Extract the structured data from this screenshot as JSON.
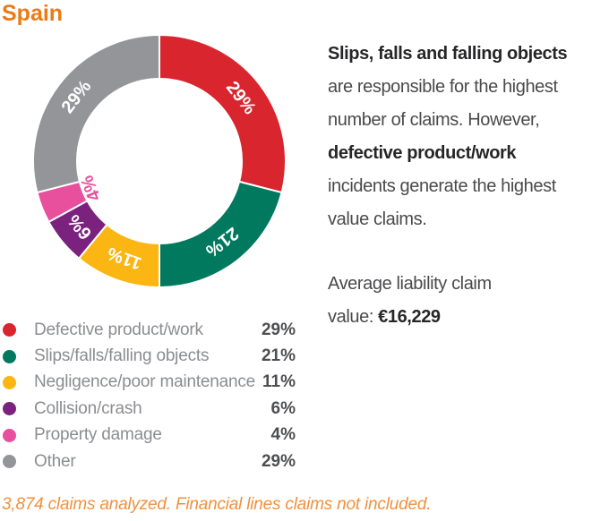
{
  "page": {
    "title": "Spain"
  },
  "colors": {
    "accent_orange": "#ea7b16",
    "footnote_orange": "#f0913e",
    "text_regular": "#4a4a4c",
    "text_bold": "#262628",
    "legend_label_gray": "#8b8d90",
    "legend_value_gray": "#4d4e50"
  },
  "chart_data": {
    "type": "pie",
    "subtype": "donut",
    "title": "Spain",
    "categories": [
      "Defective product/work",
      "Slips/falls/falling objects",
      "Negligence/poor maintenance",
      "Collision/crash",
      "Property damage",
      "Other"
    ],
    "values": [
      29,
      21,
      11,
      6,
      4,
      29
    ],
    "value_labels": [
      "29%",
      "21%",
      "11%",
      "6%",
      "4%",
      "29%"
    ],
    "colors": [
      "#d9252e",
      "#00795e",
      "#fcb613",
      "#7b217e",
      "#e8509d",
      "#939598"
    ],
    "label_colors": [
      "#ffffff",
      "#ffffff",
      "#ffffff",
      "#ffffff",
      "#e8509d",
      "#ffffff"
    ],
    "label_radii": [
      115,
      114,
      115,
      115,
      82,
      117
    ],
    "start_angle_deg": 0,
    "direction": "clockwise",
    "outer_radius": 141,
    "inner_radius": 92,
    "slice_gap_stroke": "#ffffff",
    "legend_position": "bottom-left"
  },
  "story": {
    "lines": [
      {
        "text": "Slips, falls and falling objects",
        "bold": true
      },
      {
        "text": "are responsible for the highest",
        "bold": false
      },
      {
        "text": "number of claims. However,",
        "bold": false
      },
      {
        "text": "defective product/work",
        "bold": true
      },
      {
        "text": "incidents generate the highest",
        "bold": false
      },
      {
        "text": "value claims.",
        "bold": false
      }
    ]
  },
  "average": {
    "line1": "Average liability claim",
    "value_prefix": "value: ",
    "value": "€16,229"
  },
  "footnote": {
    "text": "3,874 claims analyzed. Financial lines claims not included."
  }
}
